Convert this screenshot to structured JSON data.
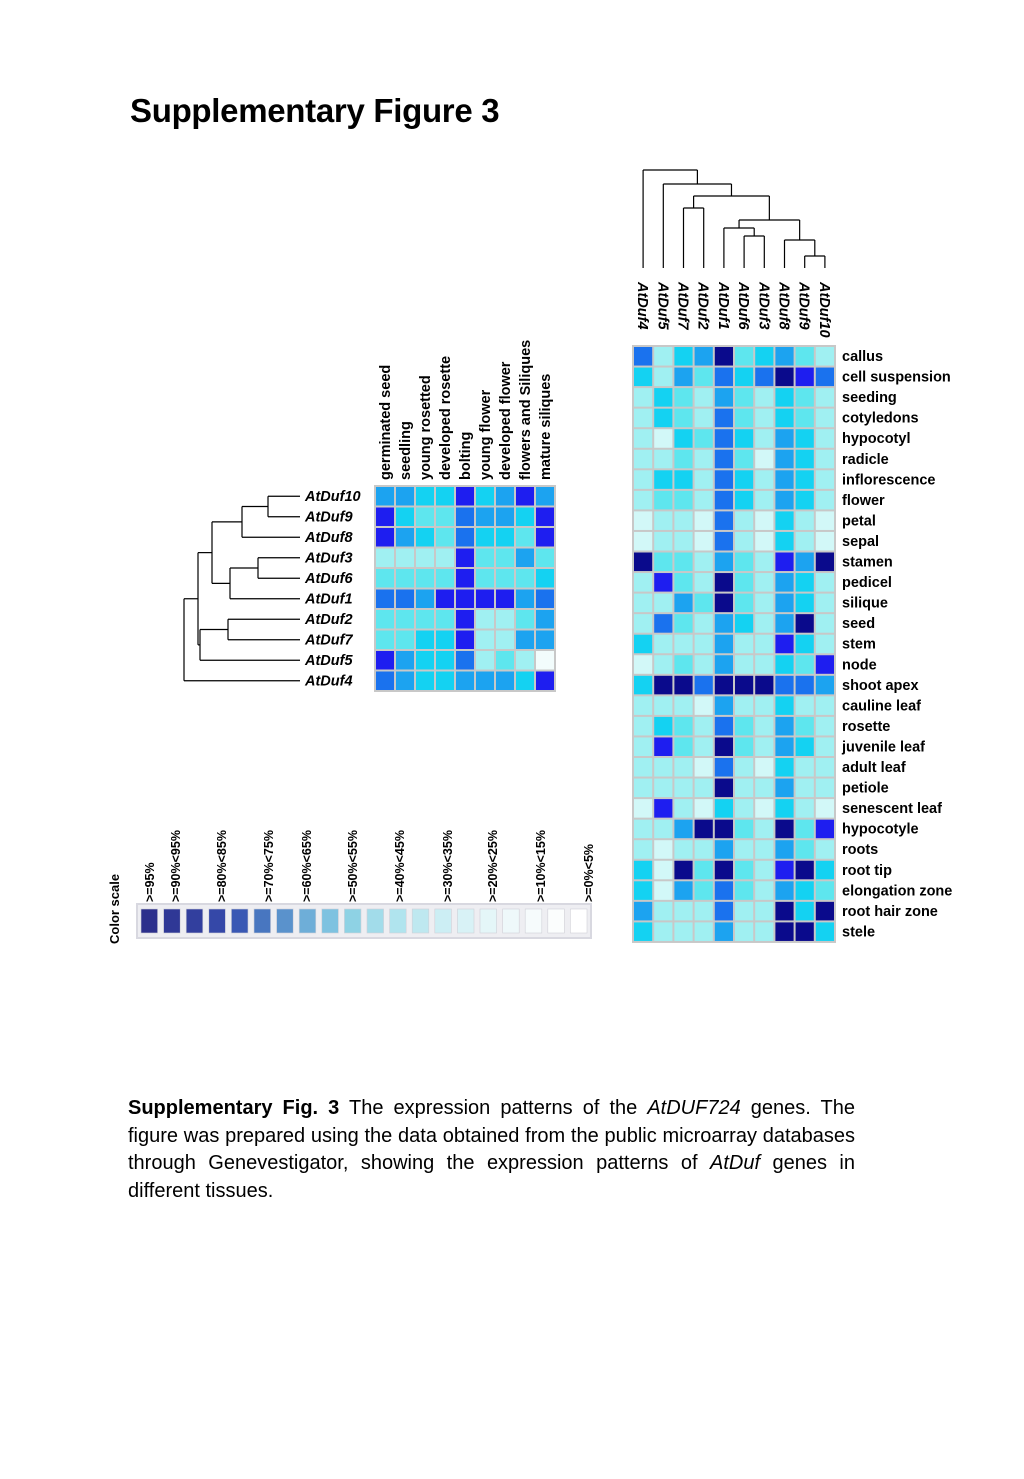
{
  "title": "Supplementary Figure 3",
  "colors": {
    "levels": [
      "#0a0a8c",
      "#1e1ef0",
      "#1a72ee",
      "#1ca3f0",
      "#14d2f2",
      "#5ee6ee",
      "#a0f0f2",
      "#d2f8f8",
      "#f2fcfc"
    ],
    "grid": "#c8c8c8",
    "scale_levels": [
      "#2c2f8c",
      "#2f3896",
      "#323f9e",
      "#3548a8",
      "#3a58b4",
      "#4876c0",
      "#5a92cc",
      "#6eaed8",
      "#7ec2e0",
      "#8ed2e4",
      "#a2dcea",
      "#b0e4ee",
      "#bee8f0",
      "#cceef4",
      "#d8f2f6",
      "#e4f6f8",
      "#eef8fa",
      "#f6fbfc",
      "#fbfdfd",
      "#ffffff"
    ]
  },
  "chart_data": [
    {
      "type": "heatmap",
      "columns": [
        "germinated seed",
        "seedling",
        "young rosetted",
        "developed rosette",
        "bolting",
        "young flower",
        "developed flower",
        "flowers and Siliques",
        "mature siliques"
      ],
      "rows": [
        "AtDuf10",
        "AtDuf9",
        "AtDuf8",
        "AtDuf3",
        "AtDuf6",
        "AtDuf1",
        "AtDuf2",
        "AtDuf7",
        "AtDuf5",
        "AtDuf4"
      ],
      "values": [
        [
          3,
          3,
          4,
          4,
          1,
          4,
          3,
          1,
          3
        ],
        [
          1,
          4,
          5,
          5,
          2,
          3,
          3,
          4,
          1
        ],
        [
          1,
          3,
          4,
          5,
          2,
          4,
          4,
          5,
          1
        ],
        [
          6,
          6,
          6,
          6,
          1,
          5,
          5,
          3,
          5
        ],
        [
          5,
          5,
          5,
          5,
          1,
          5,
          5,
          5,
          4
        ],
        [
          2,
          2,
          3,
          1,
          1,
          1,
          1,
          3,
          2
        ],
        [
          5,
          5,
          5,
          5,
          1,
          6,
          6,
          5,
          3
        ],
        [
          5,
          5,
          4,
          4,
          1,
          6,
          6,
          3,
          3
        ],
        [
          1,
          3,
          4,
          4,
          2,
          6,
          5,
          6,
          8
        ],
        [
          2,
          3,
          4,
          4,
          3,
          3,
          3,
          4,
          1
        ]
      ]
    },
    {
      "type": "heatmap",
      "columns": [
        "AtDuf4",
        "AtDuf5",
        "AtDuf7",
        "AtDuf2",
        "AtDuf1",
        "AtDuf6",
        "AtDuf3",
        "AtDuf8",
        "AtDuf9",
        "AtDuf10"
      ],
      "rows": [
        "callus",
        "cell suspension",
        "seeding",
        "cotyledons",
        "hypocotyl",
        "radicle",
        "inflorescence",
        "flower",
        "petal",
        "sepal",
        "stamen",
        "pedicel",
        "silique",
        "seed",
        "stem",
        "node",
        "shoot apex",
        "cauline leaf",
        "rosette",
        "juvenile leaf",
        "adult leaf",
        "petiole",
        "senescent leaf",
        "hypocotyle",
        "roots",
        "root tip",
        "elongation zone",
        "root hair zone",
        "stele"
      ],
      "values": [
        [
          2,
          6,
          4,
          3,
          0,
          5,
          4,
          3,
          5,
          6
        ],
        [
          4,
          6,
          3,
          5,
          2,
          4,
          2,
          0,
          1,
          2
        ],
        [
          6,
          4,
          5,
          6,
          3,
          5,
          6,
          4,
          5,
          6
        ],
        [
          6,
          4,
          5,
          6,
          2,
          5,
          6,
          4,
          5,
          6
        ],
        [
          6,
          7,
          4,
          5,
          2,
          4,
          6,
          3,
          4,
          6
        ],
        [
          6,
          6,
          5,
          6,
          2,
          5,
          7,
          3,
          4,
          6
        ],
        [
          6,
          4,
          4,
          6,
          2,
          4,
          6,
          3,
          4,
          6
        ],
        [
          6,
          5,
          5,
          6,
          2,
          4,
          6,
          3,
          4,
          6
        ],
        [
          7,
          6,
          6,
          7,
          2,
          6,
          7,
          4,
          6,
          7
        ],
        [
          7,
          6,
          6,
          7,
          2,
          6,
          7,
          4,
          6,
          7
        ],
        [
          0,
          5,
          5,
          6,
          3,
          5,
          6,
          1,
          3,
          0
        ],
        [
          6,
          1,
          5,
          6,
          0,
          5,
          6,
          3,
          4,
          6
        ],
        [
          6,
          6,
          3,
          5,
          0,
          5,
          6,
          3,
          4,
          6
        ],
        [
          6,
          2,
          5,
          6,
          3,
          4,
          6,
          3,
          0,
          6
        ],
        [
          4,
          6,
          6,
          6,
          3,
          6,
          6,
          1,
          4,
          6
        ],
        [
          7,
          6,
          5,
          6,
          3,
          6,
          6,
          4,
          5,
          1
        ],
        [
          4,
          0,
          0,
          2,
          0,
          0,
          0,
          2,
          2,
          3
        ],
        [
          6,
          6,
          6,
          7,
          3,
          6,
          6,
          4,
          6,
          6
        ],
        [
          6,
          4,
          5,
          6,
          2,
          5,
          6,
          3,
          5,
          6
        ],
        [
          6,
          1,
          5,
          6,
          0,
          5,
          6,
          3,
          4,
          6
        ],
        [
          6,
          6,
          6,
          7,
          2,
          6,
          7,
          4,
          6,
          6
        ],
        [
          6,
          6,
          6,
          6,
          0,
          6,
          6,
          3,
          6,
          6
        ],
        [
          7,
          1,
          6,
          7,
          4,
          6,
          7,
          4,
          6,
          7
        ],
        [
          6,
          6,
          3,
          0,
          0,
          5,
          6,
          0,
          5,
          1
        ],
        [
          6,
          7,
          6,
          6,
          3,
          6,
          6,
          3,
          5,
          6
        ],
        [
          4,
          7,
          0,
          5,
          0,
          5,
          6,
          1,
          0,
          4
        ],
        [
          4,
          7,
          3,
          5,
          2,
          5,
          6,
          3,
          4,
          5
        ],
        [
          3,
          6,
          6,
          6,
          2,
          6,
          6,
          0,
          4,
          0
        ],
        [
          4,
          6,
          6,
          6,
          3,
          6,
          6,
          0,
          0,
          4
        ]
      ]
    }
  ],
  "left_heatmap": {
    "column_labels": [
      "germinated seed",
      "seedling",
      "young rosetted",
      "developed rosette",
      "bolting",
      "young flower",
      "developed flower",
      "flowers and Siliques",
      "mature siliques"
    ],
    "row_labels": [
      "AtDuf10",
      "AtDuf9",
      "AtDuf8",
      "AtDuf3",
      "AtDuf6",
      "AtDuf1",
      "AtDuf2",
      "AtDuf7",
      "AtDuf5",
      "AtDuf4"
    ]
  },
  "right_heatmap": {
    "column_labels": [
      "AtDuf4",
      "AtDuf5",
      "AtDuf7",
      "AtDuf2",
      "AtDuf1",
      "AtDuf6",
      "AtDuf3",
      "AtDuf8",
      "AtDuf9",
      "AtDuf10"
    ],
    "row_labels": [
      "callus",
      "cell suspension",
      "seeding",
      "cotyledons",
      "hypocotyl",
      "radicle",
      "inflorescence",
      "flower",
      "petal",
      "sepal",
      "stamen",
      "pedicel",
      "silique",
      "seed",
      "stem",
      "node",
      "shoot apex",
      "cauline leaf",
      "rosette",
      "juvenile leaf",
      "adult leaf",
      "petiole",
      "senescent leaf",
      "hypocotyle",
      "roots",
      "root tip",
      "elongation zone",
      "root hair zone",
      "stele"
    ]
  },
  "color_scale": {
    "label": "Color scale",
    "tick_labels": [
      ">=95%",
      ">=90%<95%",
      ">=80%<85%",
      ">=70%<75%",
      ">=60%<65%",
      ">=50%<55%",
      ">=40%<45%",
      ">=30%<35%",
      ">=20%<25%",
      ">=10%<15%",
      ">=0%<5%"
    ]
  },
  "caption": {
    "lead": "Supplementary Fig. 3",
    "text1": " The expression patterns of the ",
    "gene": "AtDUF724",
    "text2": " genes. The figure was prepared using the data obtained from the public microarray databases through Genevestigator, showing the expression patterns of ",
    "genus": "AtDuf",
    "text3": " genes in different tissues."
  }
}
